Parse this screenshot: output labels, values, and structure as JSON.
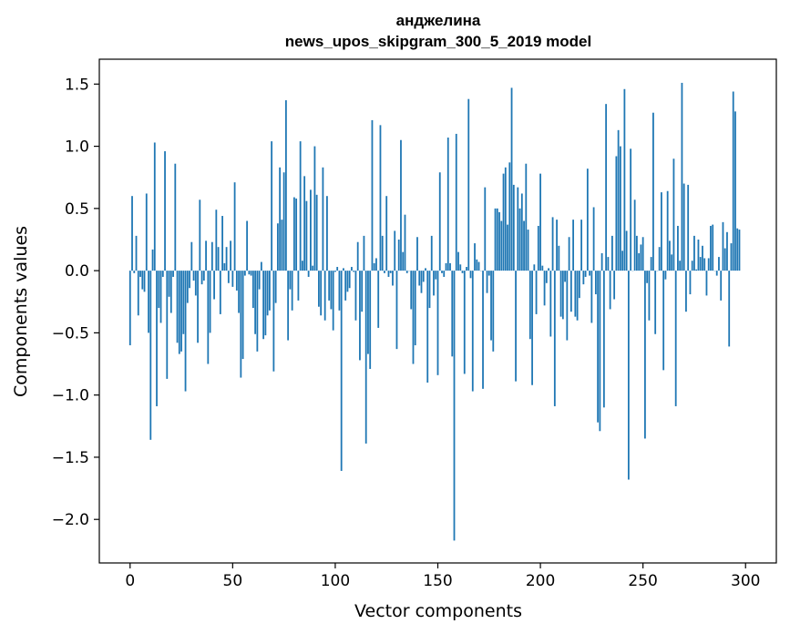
{
  "chart_data": {
    "type": "bar",
    "title": "анджелина",
    "subtitle": "news_upos_skipgram_300_5_2019 model",
    "xlabel": "Vector components",
    "ylabel": "Components values",
    "xlim": [
      -15,
      315
    ],
    "ylim": [
      -2.35,
      1.7
    ],
    "xticks": [
      0,
      50,
      100,
      150,
      200,
      250,
      300
    ],
    "yticks": [
      1.5,
      1.0,
      0.5,
      0.0,
      -0.5,
      -1.0,
      -1.5,
      -2.0
    ],
    "ytick_labels": [
      "1.5",
      "1.0",
      "0.5",
      "0.0",
      "−0.5",
      "−1.0",
      "−1.5",
      "−2.0"
    ],
    "bar_color": "#1f77b4",
    "grid": false,
    "values": [
      -0.6,
      0.6,
      -0.02,
      0.28,
      -0.36,
      -0.05,
      -0.15,
      -0.17,
      0.62,
      -0.5,
      -1.36,
      0.17,
      1.03,
      -1.09,
      -0.3,
      -0.42,
      -0.05,
      0.96,
      -0.87,
      -0.21,
      -0.34,
      -0.05,
      0.86,
      -0.58,
      -0.67,
      -0.65,
      -0.51,
      -0.97,
      -0.26,
      -0.14,
      0.23,
      -0.08,
      -0.2,
      -0.58,
      0.57,
      -0.11,
      -0.08,
      0.24,
      -0.75,
      -0.5,
      0.23,
      -0.23,
      0.49,
      0.19,
      -0.35,
      0.44,
      0.06,
      0.19,
      -0.1,
      0.24,
      -0.13,
      0.71,
      -0.16,
      -0.34,
      -0.86,
      -0.71,
      -0.04,
      0.4,
      -0.03,
      -0.04,
      -0.3,
      -0.51,
      -0.65,
      -0.15,
      0.07,
      -0.55,
      -0.52,
      -0.36,
      -0.32,
      1.04,
      -0.81,
      -0.26,
      0.38,
      0.83,
      0.41,
      0.79,
      1.37,
      -0.56,
      -0.15,
      -0.32,
      0.59,
      0.58,
      -0.24,
      1.04,
      0.08,
      0.76,
      0.56,
      -0.05,
      0.65,
      0.04,
      1.0,
      0.61,
      -0.29,
      -0.36,
      0.83,
      -0.4,
      0.6,
      -0.24,
      -0.31,
      -0.48,
      -0.01,
      0.03,
      -0.32,
      -1.61,
      0.02,
      -0.24,
      -0.17,
      -0.14,
      0.03,
      -0.01,
      -0.4,
      0.23,
      -0.72,
      -0.33,
      0.28,
      -1.39,
      -0.67,
      -0.79,
      1.21,
      0.06,
      0.1,
      -0.46,
      1.17,
      0.28,
      -0.02,
      0.6,
      -0.05,
      -0.02,
      -0.12,
      0.32,
      -0.63,
      0.25,
      1.05,
      0.15,
      0.45,
      -0.02,
      0.0,
      -0.31,
      -0.75,
      -0.6,
      0.27,
      -0.12,
      -0.18,
      -0.09,
      0.02,
      -0.9,
      -0.3,
      0.28,
      -0.2,
      -0.07,
      -0.84,
      0.79,
      -0.02,
      -0.05,
      0.06,
      1.07,
      0.06,
      -0.69,
      -2.17,
      1.1,
      0.15,
      0.05,
      -0.02,
      -0.83,
      0.03,
      1.38,
      -0.06,
      -0.97,
      0.22,
      0.09,
      0.07,
      0.0,
      -0.95,
      0.67,
      -0.18,
      -0.04,
      -0.56,
      -0.65,
      0.5,
      0.5,
      0.47,
      0.4,
      0.78,
      0.83,
      0.37,
      0.87,
      1.47,
      0.69,
      -0.89,
      0.67,
      0.5,
      0.62,
      0.4,
      0.86,
      0.33,
      -0.55,
      -0.92,
      0.05,
      -0.35,
      0.36,
      0.78,
      0.04,
      -0.28,
      -0.1,
      0.02,
      -0.53,
      0.43,
      -1.09,
      0.41,
      0.2,
      -0.37,
      -0.39,
      -0.09,
      -0.56,
      0.27,
      -0.33,
      0.41,
      -0.37,
      -0.4,
      -0.22,
      0.41,
      -0.11,
      -0.05,
      0.82,
      -0.04,
      -0.42,
      0.51,
      -0.19,
      -1.22,
      -1.29,
      0.14,
      -1.1,
      1.34,
      0.11,
      -0.31,
      0.28,
      -0.23,
      0.92,
      1.13,
      1.0,
      0.16,
      1.46,
      0.32,
      -1.68,
      0.98,
      0.0,
      0.57,
      0.28,
      0.14,
      0.21,
      0.27,
      -1.35,
      -0.1,
      -0.4,
      0.11,
      1.27,
      -0.51,
      0.0,
      0.19,
      0.63,
      -0.8,
      -0.07,
      0.64,
      0.24,
      0.13,
      0.9,
      -1.09,
      0.36,
      0.08,
      1.51,
      0.7,
      -0.33,
      0.69,
      -0.19,
      0.08,
      0.28,
      0.01,
      0.25,
      0.11,
      0.2,
      0.1,
      -0.2,
      0.1,
      0.36,
      0.37,
      0.0,
      -0.04,
      0.11,
      -0.24,
      0.39,
      0.18,
      0.31,
      -0.61,
      0.22,
      1.44,
      1.28,
      0.34,
      0.33
    ]
  }
}
